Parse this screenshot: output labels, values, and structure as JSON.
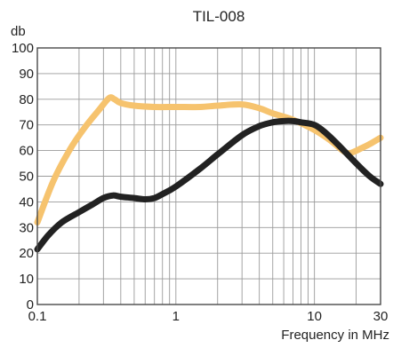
{
  "chart_data": {
    "type": "line",
    "title": "TIL-008",
    "ylabel": "db",
    "xlabel": "Frequency in MHz",
    "xscale": "log",
    "xlim": [
      0.1,
      30
    ],
    "ylim": [
      0,
      100
    ],
    "grid": true,
    "legend": "none",
    "x_tick_labels": [
      "0.1",
      "1",
      "10",
      "30"
    ],
    "x_tick_values": [
      0.1,
      1,
      10,
      30
    ],
    "y_tick_labels": [
      "0",
      "10",
      "20",
      "30",
      "40",
      "50",
      "60",
      "70",
      "80",
      "90",
      "100"
    ],
    "y_tick_values": [
      0,
      10,
      20,
      30,
      40,
      50,
      60,
      70,
      80,
      90,
      100
    ],
    "series": [
      {
        "color": "#f6c36e",
        "x": [
          0.1,
          0.13,
          0.17,
          0.22,
          0.28,
          0.33,
          0.36,
          0.4,
          0.5,
          0.7,
          1.0,
          1.5,
          2.0,
          3.0,
          4.0,
          5.0,
          7.0,
          10.0,
          13.0,
          16.0,
          18.0,
          22.0,
          26.0,
          30.0
        ],
        "y": [
          32,
          48,
          60,
          69,
          76,
          80.5,
          80,
          78.5,
          77.5,
          77,
          77,
          77,
          77.5,
          78,
          76.5,
          74.5,
          72,
          68,
          64,
          60,
          59,
          61,
          63,
          65
        ]
      },
      {
        "color": "#222222",
        "x": [
          0.1,
          0.12,
          0.15,
          0.2,
          0.25,
          0.3,
          0.35,
          0.4,
          0.5,
          0.6,
          0.7,
          0.8,
          1.0,
          1.5,
          2.0,
          3.0,
          4.0,
          5.0,
          6.0,
          7.0,
          8.0,
          10.0,
          12.0,
          15.0,
          20.0,
          25.0,
          30.0
        ],
        "y": [
          21.5,
          27,
          32,
          36,
          39,
          41.5,
          42.5,
          42,
          41.5,
          41,
          41.5,
          43,
          46,
          53,
          58.5,
          66,
          69.5,
          71,
          71.5,
          71.5,
          71,
          70,
          67,
          62,
          55,
          50,
          47
        ]
      }
    ]
  }
}
